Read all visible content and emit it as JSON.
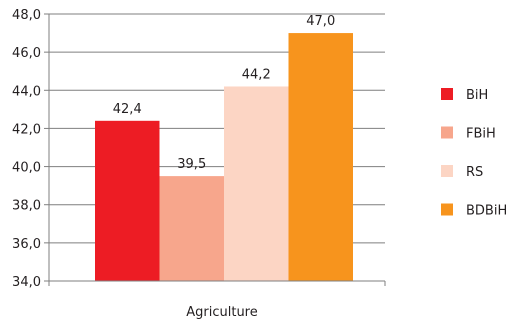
{
  "chart_data": {
    "type": "bar",
    "categories": [
      "Agriculture"
    ],
    "series": [
      {
        "name": "BiH",
        "values": [
          42.4
        ],
        "label": "42,4",
        "color": "#ed1c24"
      },
      {
        "name": "FBiH",
        "values": [
          39.5
        ],
        "label": "39,5",
        "color": "#f7a68c"
      },
      {
        "name": "RS",
        "values": [
          44.2
        ],
        "label": "44,2",
        "color": "#fcd5c4"
      },
      {
        "name": "BDBiH",
        "values": [
          47.0
        ],
        "label": "47,0",
        "color": "#f7941d"
      }
    ],
    "ylim": [
      34.0,
      48.0
    ],
    "yticks": [
      34.0,
      36.0,
      38.0,
      40.0,
      42.0,
      44.0,
      46.0,
      48.0
    ],
    "ytick_labels": [
      "34,0",
      "36,0",
      "38,0",
      "40,0",
      "42,0",
      "44,0",
      "46,0",
      "48,0"
    ],
    "grid": true,
    "legend_position": "right",
    "title": "",
    "xlabel": "",
    "ylabel": ""
  }
}
